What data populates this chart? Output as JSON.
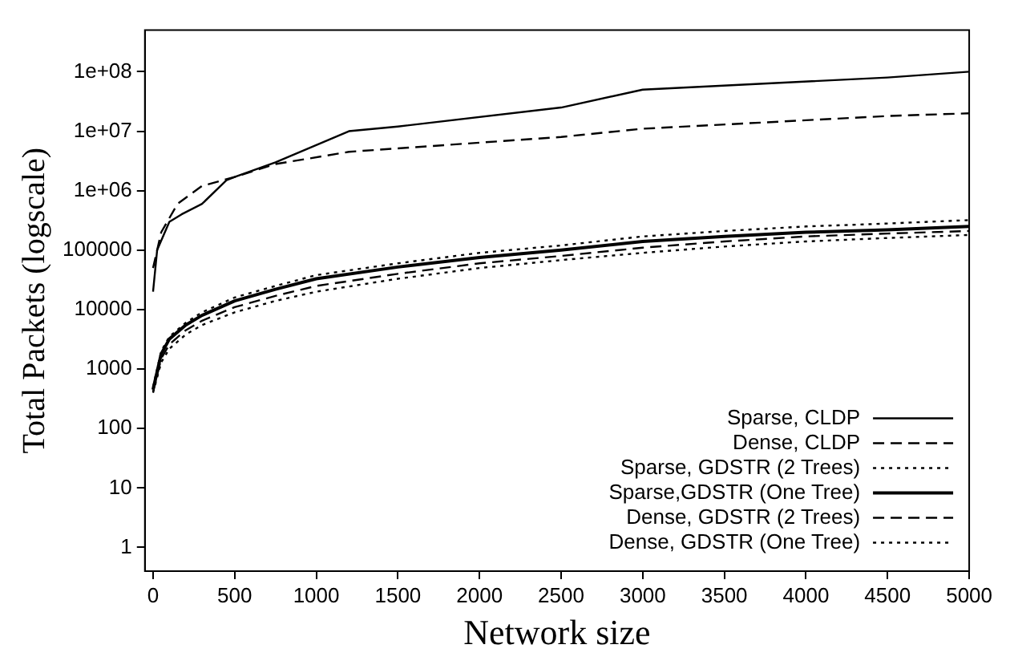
{
  "chart_data": {
    "type": "line",
    "xlabel": "Network size",
    "ylabel": "Total Packets (logscale)",
    "x": [
      0,
      50,
      100,
      200,
      300,
      500,
      750,
      1000,
      1500,
      2000,
      2500,
      3000,
      3500,
      4000,
      4500,
      5000
    ],
    "series": [
      {
        "name": "Sparse, CLDP",
        "color": "#000000",
        "line_style": "solid",
        "x": [
          0,
          25,
          100,
          175,
          300,
          450,
          500,
          750,
          1200,
          1500,
          2500,
          3000,
          4500,
          5000
        ],
        "values": [
          20000,
          100000,
          300000,
          400000,
          600000,
          1500000,
          1700000,
          3000000,
          10000000,
          12000000,
          25000000,
          50000000,
          80000000,
          100000000
        ]
      },
      {
        "name": "Dense, CLDP",
        "color": "#000000",
        "line_style": "dashed",
        "x": [
          0,
          50,
          150,
          300,
          500,
          750,
          1200,
          2500,
          3000,
          4500,
          5000
        ],
        "values": [
          50000,
          200000,
          600000,
          1200000,
          1700000,
          2800000,
          4500000,
          8000000,
          11000000,
          18000000,
          20000000
        ]
      },
      {
        "name": "Sparse, GDSTR (2 Trees)",
        "color": "#000000",
        "line_style": "dotted",
        "values": [
          500,
          2000,
          3500,
          6000,
          9000,
          16000,
          25000,
          38000,
          60000,
          90000,
          120000,
          170000,
          210000,
          250000,
          280000,
          320000
        ]
      },
      {
        "name": "Sparse,GDSTR (One Tree)",
        "color": "#000000",
        "line_style": "solid",
        "values": [
          450,
          1800,
          3200,
          5500,
          8000,
          14000,
          22000,
          33000,
          52000,
          75000,
          100000,
          140000,
          170000,
          200000,
          220000,
          250000
        ]
      },
      {
        "name": "Dense, GDSTR (2 Trees)",
        "color": "#000000",
        "line_style": "dashed",
        "values": [
          420,
          1500,
          2600,
          4500,
          6500,
          11000,
          17000,
          25000,
          40000,
          60000,
          80000,
          110000,
          140000,
          170000,
          190000,
          210000
        ]
      },
      {
        "name": "Dense, GDSTR (One Tree)",
        "color": "#000000",
        "line_style": "dotted",
        "values": [
          400,
          1300,
          2200,
          3800,
          5500,
          9000,
          14000,
          20000,
          33000,
          50000,
          68000,
          90000,
          115000,
          140000,
          160000,
          180000
        ]
      }
    ],
    "log": "y",
    "xlim": [
      -50,
      5000
    ],
    "ylim": [
      0.4,
      500000000
    ],
    "xticks": [
      0,
      500,
      1000,
      1500,
      2000,
      2500,
      3000,
      3500,
      4000,
      4500,
      5000
    ],
    "yticks": [
      1,
      10,
      100,
      1000,
      10000,
      100000,
      {
        "value": 1000000,
        "label": "1e+06"
      },
      {
        "value": 10000000,
        "label": "1e+07"
      },
      {
        "value": 100000000,
        "label": "1e+08"
      }
    ],
    "grid": false,
    "legend": "bottom right",
    "marker": "none"
  }
}
